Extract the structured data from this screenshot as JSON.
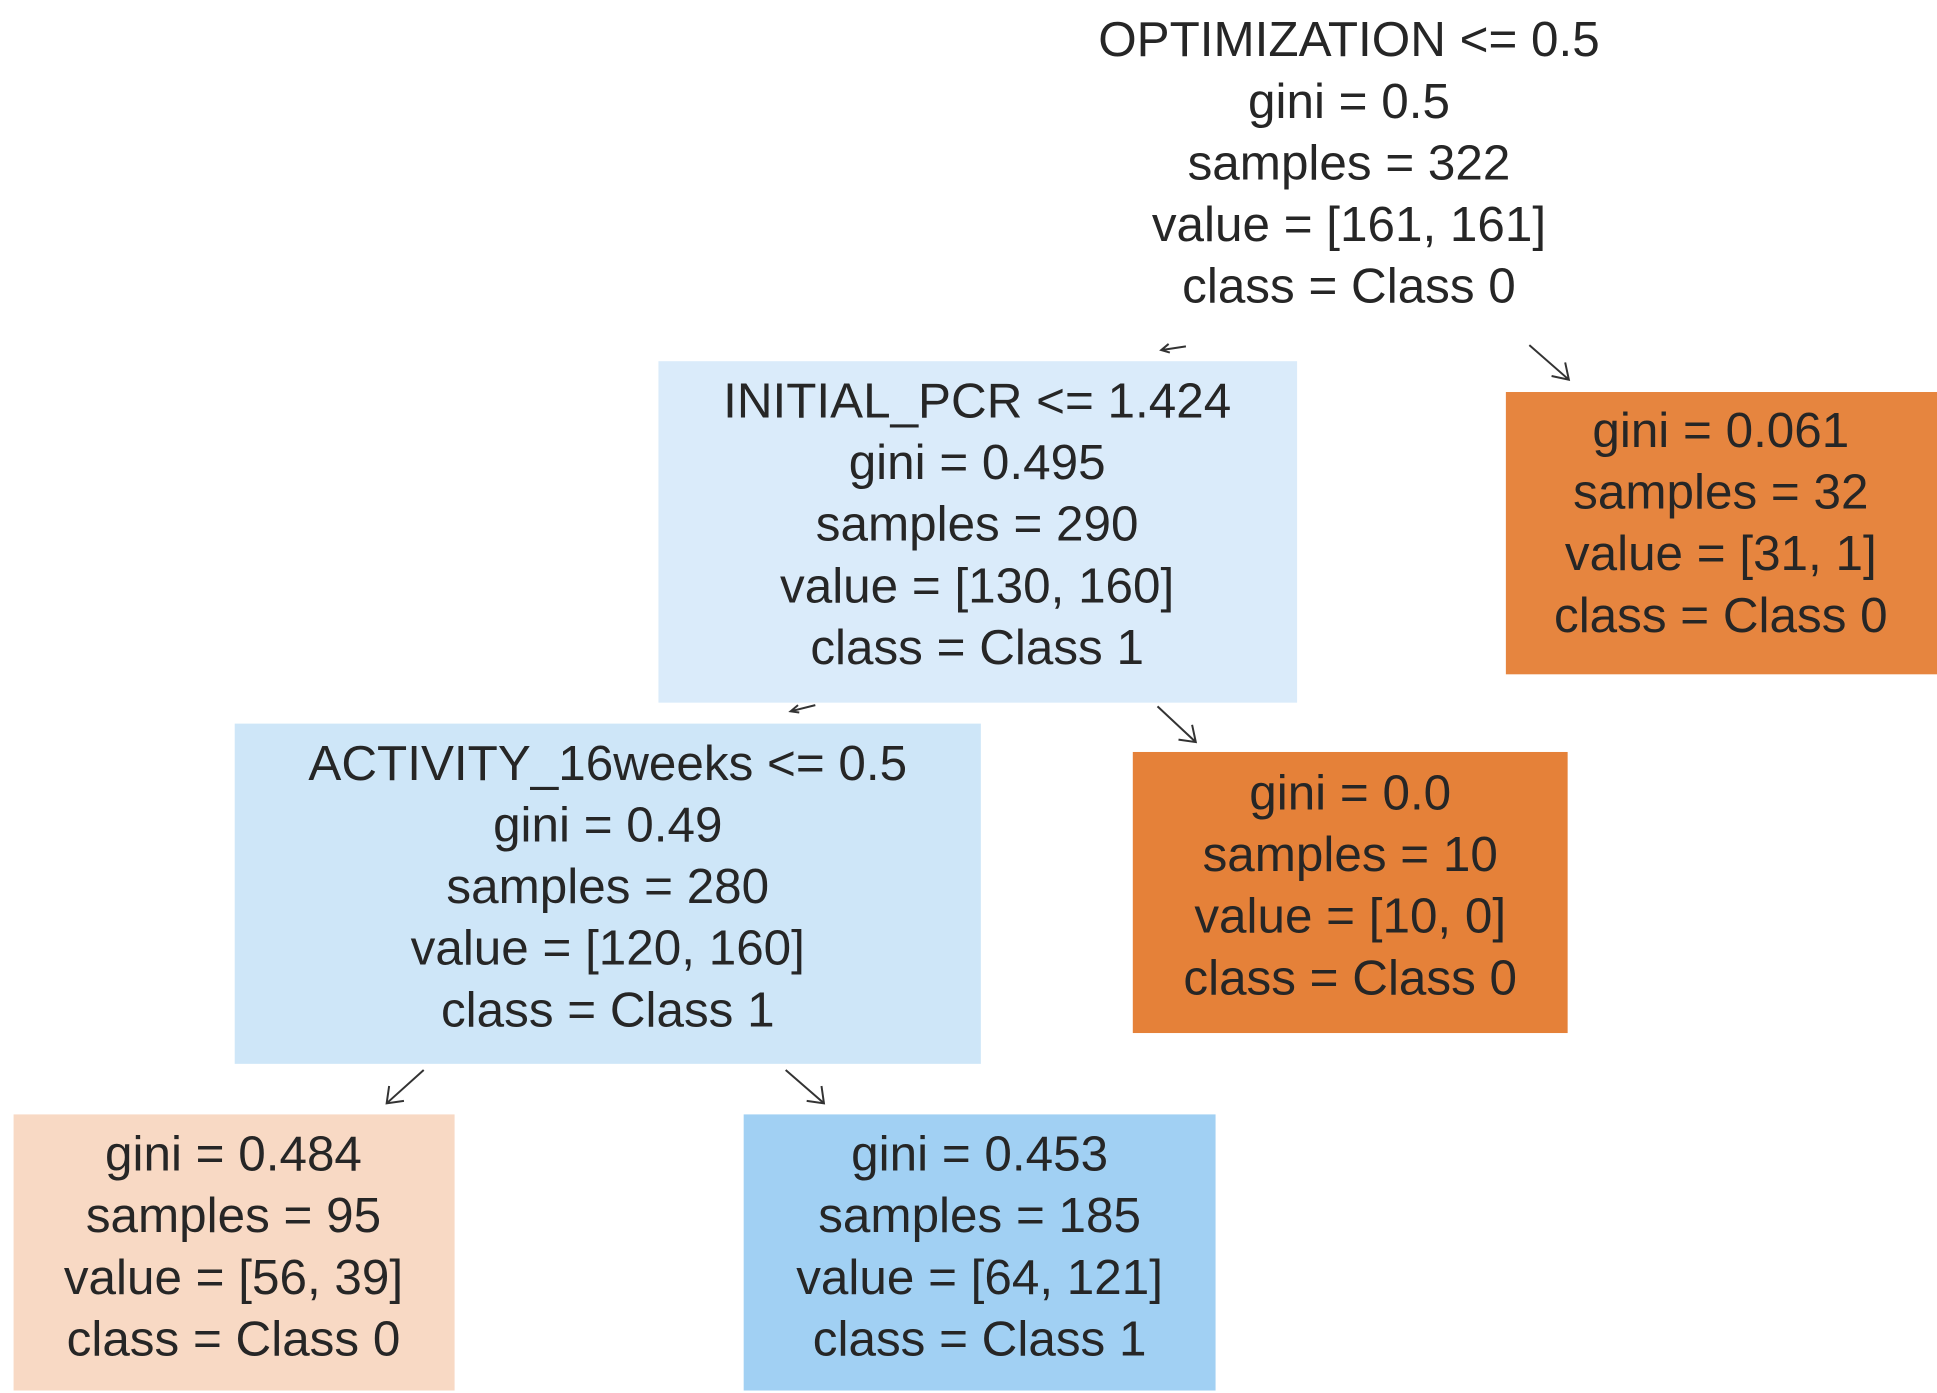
{
  "nodes": [
    {
      "lines": [
        "OPTIMIZATION <= 0.5",
        "gini = 0.5",
        "samples = 322",
        "value = [161, 161]",
        "class = Class 0"
      ],
      "color": "#ffffff"
    },
    {
      "lines": [
        "INITIAL_PCR <= 1.424",
        "gini = 0.495",
        "samples = 290",
        "value = [130, 160]",
        "class = Class 1"
      ],
      "color": "#daebfa"
    },
    {
      "lines": [
        "gini = 0.061",
        "samples = 32",
        "value = [31, 1]",
        "class = Class 0"
      ],
      "color": "#e6853f"
    },
    {
      "lines": [
        "ACTIVITY_16weeks <= 0.5",
        "gini = 0.49",
        "samples = 280",
        "value = [120, 160]",
        "class = Class 1"
      ],
      "color": "#cee6f8"
    },
    {
      "lines": [
        "gini = 0.0",
        "samples = 10",
        "value = [10, 0]",
        "class = Class 0"
      ],
      "color": "#e58139"
    },
    {
      "lines": [
        "gini = 0.484",
        "samples = 95",
        "value = [56, 39]",
        "class = Class 0"
      ],
      "color": "#f8d9c4"
    },
    {
      "lines": [
        "gini = 0.453",
        "samples = 185",
        "value = [64, 121]",
        "class = Class 1"
      ],
      "color": "#a1d0f3"
    }
  ]
}
